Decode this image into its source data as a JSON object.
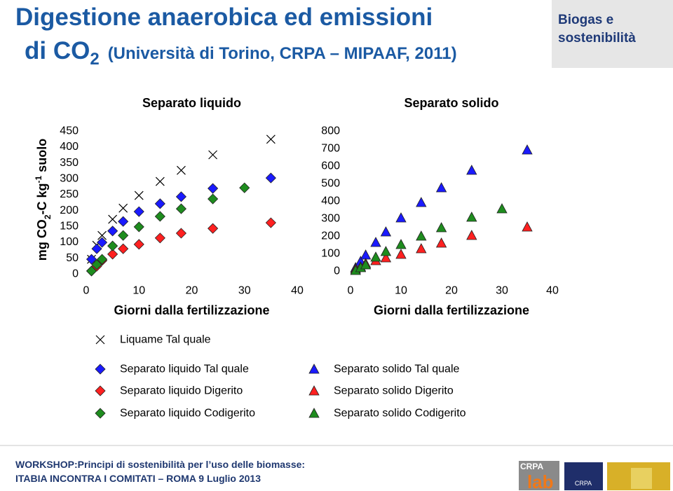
{
  "header": {
    "title_line1": "Digestione anaerobica ed emissioni",
    "title_co": "di CO",
    "title_sub": "2",
    "title_rest": "(Università di Torino, CRPA – MIPAAF, 2011)",
    "badge_line1": "Biogas e",
    "badge_line2": "sostenibilità"
  },
  "chart_data": [
    {
      "type": "scatter",
      "title": "Separato liquido",
      "x_label": "Giorni dalla fertilizzazione",
      "y_label_parts": [
        "mg CO",
        "2",
        "-C kg",
        "-1",
        "suolo"
      ],
      "xlim": [
        0,
        40
      ],
      "xticks": [
        0,
        10,
        20,
        30,
        40
      ],
      "ylim": [
        0,
        450
      ],
      "yticks": [
        0,
        50,
        100,
        150,
        200,
        250,
        300,
        350,
        400,
        450
      ],
      "series": [
        {
          "name": "Liquame Tal quale",
          "marker": "x",
          "color": "#000000",
          "x": [
            1,
            2,
            3,
            5,
            7,
            10,
            14,
            18,
            24,
            35
          ],
          "values": [
            46,
            90,
            121,
            172,
            207,
            247,
            291,
            326,
            375,
            424
          ]
        },
        {
          "name": "Separato liquido Tal quale",
          "marker": "diamond",
          "color": "#1a1aff",
          "x": [
            1,
            2,
            3,
            5,
            7,
            10,
            14,
            18,
            24,
            35
          ],
          "values": [
            46,
            79,
            99,
            135,
            165,
            196,
            221,
            243,
            269,
            302
          ]
        },
        {
          "name": "Separato liquido Digerito",
          "marker": "diamond",
          "color": "#ff2020",
          "x": [
            1,
            2,
            3,
            5,
            7,
            10,
            14,
            18,
            24,
            35
          ],
          "values": [
            9,
            24,
            42,
            62,
            79,
            93,
            113,
            128,
            143,
            161
          ]
        },
        {
          "name": "Separato liquido Codigerito",
          "marker": "diamond",
          "color": "#1e8c1e",
          "x": [
            1,
            2,
            3,
            5,
            7,
            10,
            14,
            18,
            24,
            30
          ],
          "values": [
            9,
            29,
            46,
            88,
            121,
            148,
            181,
            205,
            236,
            271
          ]
        }
      ]
    },
    {
      "type": "scatter",
      "title": "Separato solido",
      "x_label": "Giorni dalla fertilizzazione",
      "xlim": [
        0,
        40
      ],
      "xticks": [
        0,
        10,
        20,
        30,
        40
      ],
      "ylim": [
        0,
        800
      ],
      "yticks": [
        0,
        100,
        200,
        300,
        400,
        500,
        600,
        700,
        800
      ],
      "series": [
        {
          "name": "Separato solido Tal quale",
          "marker": "triangle",
          "color": "#1a1aff",
          "x": [
            1,
            2,
            3,
            5,
            7,
            10,
            14,
            18,
            24,
            35
          ],
          "values": [
            20,
            56,
            92,
            164,
            224,
            304,
            392,
            476,
            576,
            692
          ]
        },
        {
          "name": "Separato solido Digerito",
          "marker": "triangle",
          "color": "#ff2020",
          "x": [
            1,
            2,
            3,
            5,
            7,
            10,
            14,
            18,
            24,
            35
          ],
          "values": [
            12,
            24,
            44,
            60,
            76,
            96,
            128,
            160,
            204,
            252
          ]
        },
        {
          "name": "Separato solido Codigerito",
          "marker": "triangle",
          "color": "#1e8c1e",
          "x": [
            1,
            2,
            3,
            5,
            7,
            10,
            14,
            18,
            24,
            30
          ],
          "values": [
            4,
            20,
            36,
            80,
            112,
            152,
            200,
            248,
            308,
            356
          ]
        }
      ]
    }
  ],
  "footer": {
    "line1": "WORKSHOP:Principi di sostenibilità per l’uso delle biomasse:",
    "line2": "ITABIA INCONTRA I COMITATI – ROMA 9 Luglio 2013"
  },
  "logos": {
    "crpa": "CRPA",
    "lab": "lab",
    "crpa_small": "CRPA"
  }
}
